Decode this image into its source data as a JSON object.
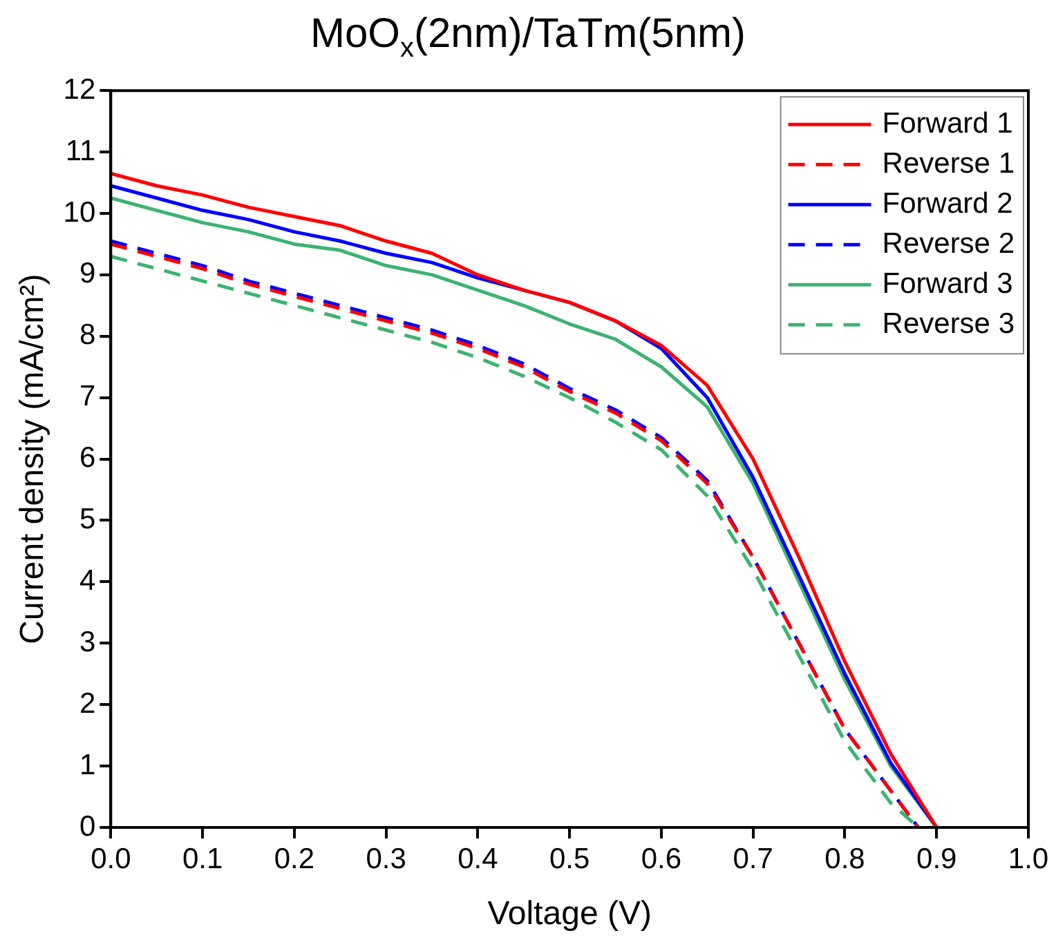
{
  "chart_data": {
    "type": "line",
    "title": "MoO$_{x}$(2nm)/TaTm(5nm)",
    "xlabel": "Voltage (V)",
    "ylabel": "Current density (mA/cm²)",
    "xlim": [
      0,
      1
    ],
    "ylim": [
      0,
      12
    ],
    "xticks": [
      {
        "value": 0,
        "label": "0.0"
      },
      {
        "value": 0.1,
        "label": "0.1"
      },
      {
        "value": 0.2,
        "label": "0.2"
      },
      {
        "value": 0.3,
        "label": "0.3"
      },
      {
        "value": 0.4,
        "label": "0.4"
      },
      {
        "value": 0.5,
        "label": "0.5"
      },
      {
        "value": 0.6,
        "label": "0.6"
      },
      {
        "value": 0.7,
        "label": "0.7"
      },
      {
        "value": 0.8,
        "label": "0.8"
      },
      {
        "value": 0.9,
        "label": "0.9"
      },
      {
        "value": 1,
        "label": "1.0"
      }
    ],
    "yticks": [
      0,
      1,
      2,
      3,
      4,
      5,
      6,
      7,
      8,
      9,
      10,
      11,
      12
    ],
    "grid": false,
    "legend": "top right",
    "marker": "none",
    "x": [
      0,
      0.05,
      0.1,
      0.15,
      0.2,
      0.25,
      0.3,
      0.35,
      0.4,
      0.45,
      0.5,
      0.55,
      0.6,
      0.65,
      0.7,
      0.75,
      0.8,
      0.85,
      0.9
    ],
    "series": [
      {
        "name": "Forward 1",
        "color": "#ff0000",
        "line_style": "solid",
        "values": [
          10.65,
          10.45,
          10.3,
          10.1,
          9.95,
          9.8,
          9.55,
          9.35,
          9.0,
          8.75,
          8.55,
          8.25,
          7.85,
          7.2,
          6.0,
          4.4,
          2.7,
          1.2,
          0
        ]
      },
      {
        "name": "Reverse 1",
        "color": "#ff0000",
        "line_style": "dashed",
        "x": [
          0,
          0.05,
          0.1,
          0.15,
          0.2,
          0.25,
          0.3,
          0.35,
          0.4,
          0.45,
          0.5,
          0.55,
          0.6,
          0.65,
          0.7,
          0.75,
          0.8,
          0.85,
          0.88
        ],
        "values": [
          9.5,
          9.3,
          9.1,
          8.85,
          8.65,
          8.45,
          8.25,
          8.05,
          7.8,
          7.5,
          7.1,
          6.75,
          6.3,
          5.6,
          4.4,
          3.0,
          1.6,
          0.6,
          0
        ]
      },
      {
        "name": "Forward 2",
        "color": "#0000ff",
        "line_style": "solid",
        "values": [
          10.45,
          10.25,
          10.05,
          9.9,
          9.7,
          9.55,
          9.35,
          9.2,
          8.95,
          8.75,
          8.55,
          8.25,
          7.8,
          7.0,
          5.7,
          4.1,
          2.5,
          1.05,
          0
        ]
      },
      {
        "name": "Reverse 2",
        "color": "#0000ff",
        "line_style": "dashed",
        "x": [
          0,
          0.05,
          0.1,
          0.15,
          0.2,
          0.25,
          0.3,
          0.35,
          0.4,
          0.45,
          0.5,
          0.55,
          0.6,
          0.65,
          0.7,
          0.75,
          0.8,
          0.85,
          0.88
        ],
        "values": [
          9.55,
          9.35,
          9.15,
          8.9,
          8.7,
          8.5,
          8.3,
          8.1,
          7.85,
          7.55,
          7.15,
          6.8,
          6.35,
          5.65,
          4.4,
          3.0,
          1.6,
          0.6,
          0
        ]
      },
      {
        "name": "Forward 3",
        "color": "#3cb371",
        "line_style": "solid",
        "values": [
          10.25,
          10.05,
          9.85,
          9.7,
          9.5,
          9.4,
          9.15,
          9.0,
          8.75,
          8.5,
          8.2,
          7.95,
          7.5,
          6.85,
          5.6,
          4.0,
          2.4,
          1.0,
          0
        ]
      },
      {
        "name": "Reverse 3",
        "color": "#3cb371",
        "line_style": "dashed",
        "x": [
          0,
          0.05,
          0.1,
          0.15,
          0.2,
          0.25,
          0.3,
          0.35,
          0.4,
          0.45,
          0.5,
          0.55,
          0.6,
          0.65,
          0.7,
          0.75,
          0.8,
          0.85,
          0.88
        ],
        "values": [
          9.3,
          9.1,
          8.9,
          8.7,
          8.5,
          8.3,
          8.1,
          7.9,
          7.65,
          7.35,
          7.0,
          6.6,
          6.15,
          5.4,
          4.2,
          2.8,
          1.4,
          0.4,
          0
        ]
      }
    ]
  }
}
